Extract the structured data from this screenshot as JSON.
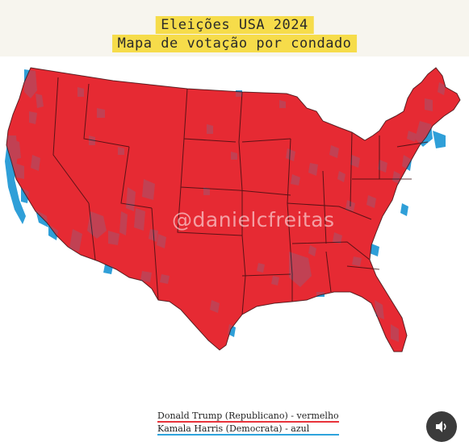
{
  "header": {
    "title": "Eleições USA 2024",
    "subtitle": "Mapa de votação por condado"
  },
  "watermark": "@danielcfreitas",
  "legend": [
    {
      "label": "Donald Trump (Republicano) - vermelho",
      "color": "#e8323a"
    },
    {
      "label": "Kamala Harris (Democrata) - azul",
      "color": "#2ea3dc"
    }
  ],
  "colors": {
    "republican": "#e62a33",
    "democrat": "#2f9fd8",
    "border": "#3a0d10",
    "title_highlight": "#f6dc4a"
  },
  "controls": {
    "sound_icon": "speaker-icon"
  }
}
